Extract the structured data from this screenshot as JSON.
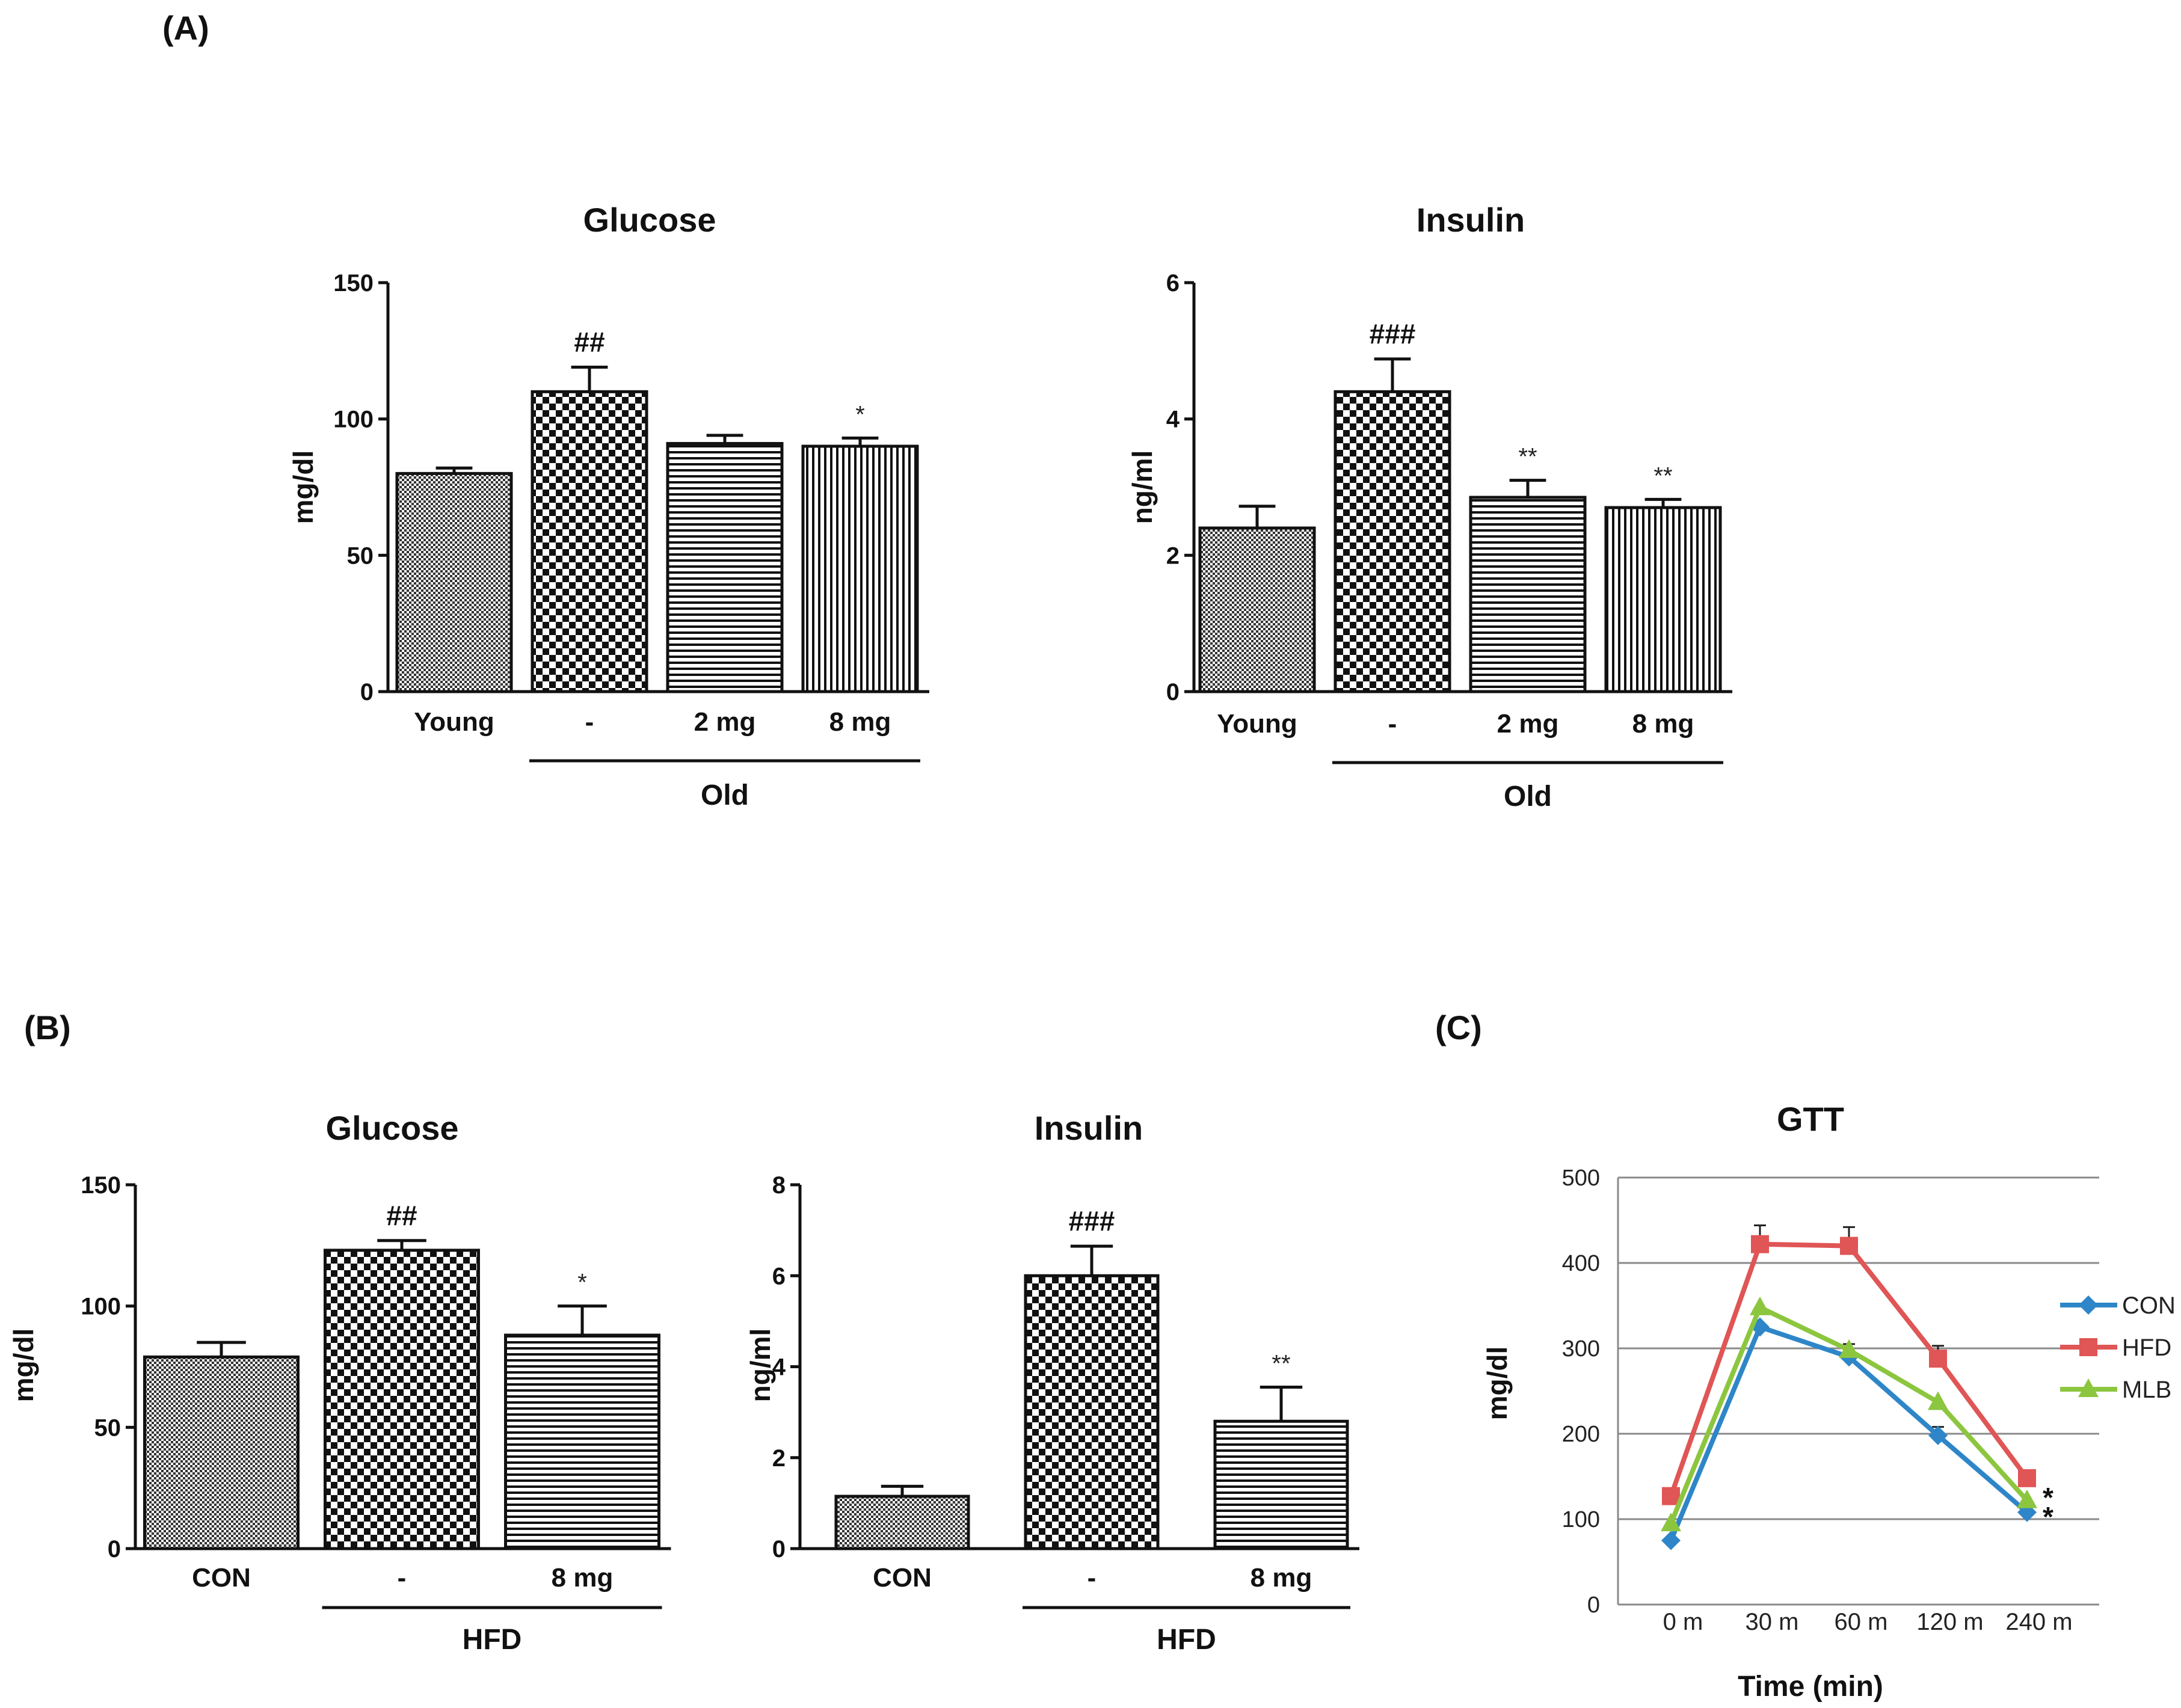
{
  "panels": {
    "A": "(A)",
    "B": "(B)",
    "C": "(C)"
  },
  "chart_data": [
    {
      "id": "a_glucose",
      "type": "bar",
      "title": "Glucose",
      "ylabel": "mg/dl",
      "ylim": [
        0,
        150
      ],
      "yticks": [
        0,
        50,
        100,
        150
      ],
      "categories": [
        "Young",
        "-",
        "2 mg",
        "8 mg"
      ],
      "values": [
        80,
        110,
        91,
        90
      ],
      "errors": [
        2,
        9,
        3,
        3
      ],
      "patterns": [
        "pat-fine",
        "pat-check",
        "pat-hlines",
        "pat-vlines"
      ],
      "annotations": [
        "",
        "##",
        "",
        "*"
      ],
      "group_label": "Old",
      "group_span": [
        1,
        3
      ]
    },
    {
      "id": "a_insulin",
      "type": "bar",
      "title": "Insulin",
      "ylabel": "ng/ml",
      "ylim": [
        0,
        6
      ],
      "yticks": [
        0,
        2,
        4,
        6
      ],
      "categories": [
        "Young",
        "-",
        "2 mg",
        "8 mg"
      ],
      "values": [
        2.4,
        4.4,
        2.85,
        2.7
      ],
      "errors": [
        0.32,
        0.48,
        0.25,
        0.12
      ],
      "patterns": [
        "pat-fine",
        "pat-check",
        "pat-hlines",
        "pat-vlines"
      ],
      "annotations": [
        "",
        "###",
        "**",
        "**"
      ],
      "group_label": "Old",
      "group_span": [
        1,
        3
      ]
    },
    {
      "id": "b_glucose",
      "type": "bar",
      "title": "Glucose",
      "ylabel": "mg/dl",
      "ylim": [
        0,
        150
      ],
      "yticks": [
        0,
        50,
        100,
        150
      ],
      "categories": [
        "CON",
        "-",
        "8 mg"
      ],
      "values": [
        79,
        123,
        88
      ],
      "errors": [
        6,
        4,
        12
      ],
      "patterns": [
        "pat-fine",
        "pat-check",
        "pat-hlines"
      ],
      "annotations": [
        "",
        "##",
        "*"
      ],
      "group_label": "HFD",
      "group_span": [
        1,
        2
      ]
    },
    {
      "id": "b_insulin",
      "type": "bar",
      "title": "Insulin",
      "ylabel": "ng/ml",
      "ylim": [
        0,
        8
      ],
      "yticks": [
        0,
        2,
        4,
        6,
        8
      ],
      "categories": [
        "CON",
        "-",
        "8 mg"
      ],
      "values": [
        1.15,
        6.0,
        2.8
      ],
      "errors": [
        0.22,
        0.65,
        0.75
      ],
      "patterns": [
        "pat-fine",
        "pat-check",
        "pat-hlines"
      ],
      "annotations": [
        "",
        "###",
        "**"
      ],
      "group_label": "HFD",
      "group_span": [
        1,
        2
      ]
    },
    {
      "id": "c_gtt",
      "type": "line",
      "title": "GTT",
      "xlabel": "Time (min)",
      "ylabel": "mg/dl",
      "ylim": [
        0,
        500
      ],
      "yticks": [
        0,
        100,
        200,
        300,
        400,
        500
      ],
      "grid": true,
      "legend_position": "right",
      "categories": [
        "0 m",
        "30 m",
        "60 m",
        "120 m",
        "240 m"
      ],
      "series": [
        {
          "name": "CON",
          "values": [
            75,
            325,
            290,
            198,
            108
          ],
          "errors": [
            0,
            0,
            15,
            10,
            0
          ],
          "color": "#2e86c8",
          "marker": "diamond"
        },
        {
          "name": "HFD",
          "values": [
            127,
            422,
            420,
            288,
            148
          ],
          "errors": [
            0,
            22,
            22,
            15,
            0
          ],
          "color": "#e05555",
          "marker": "square"
        },
        {
          "name": "MLB",
          "values": [
            95,
            348,
            298,
            237,
            122
          ],
          "errors": [
            0,
            0,
            0,
            0,
            0
          ],
          "color": "#8cc63f",
          "marker": "triangle"
        }
      ],
      "end_annotations": [
        "*",
        "*"
      ]
    }
  ]
}
